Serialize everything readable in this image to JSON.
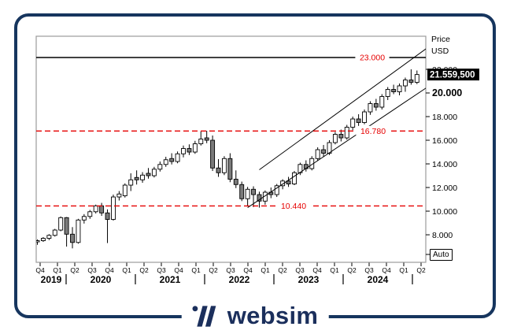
{
  "frame": {
    "border_color": "#16355e"
  },
  "footer": {
    "brand": "websim",
    "logo_color": "#1b2f5c"
  },
  "axis_right": {
    "title_line1": "Price",
    "title_line2": "USD",
    "ticks": [
      {
        "label": "22.000",
        "value": 22
      },
      {
        "label": "20.000",
        "value": 20,
        "emphasis": true
      },
      {
        "label": "18.000",
        "value": 18
      },
      {
        "label": "16.000",
        "value": 16
      },
      {
        "label": "14.000",
        "value": 14
      },
      {
        "label": "12.000",
        "value": 12
      },
      {
        "label": "10.000",
        "value": 10
      },
      {
        "label": "8.000",
        "value": 8
      }
    ],
    "auto_button": "Auto"
  },
  "price_marker": {
    "label": "21.559,500",
    "value": 21.5595
  },
  "axis_bottom": {
    "quarters": [
      "Q4",
      "Q1",
      "Q2",
      "Q3",
      "Q4",
      "Q1",
      "Q2",
      "Q3",
      "Q4",
      "Q1",
      "Q2",
      "Q3",
      "Q4",
      "Q1",
      "Q2",
      "Q3",
      "Q4",
      "Q1",
      "Q2",
      "Q3",
      "Q4",
      "Q1",
      "Q2"
    ],
    "years": [
      {
        "label": "2019"
      },
      {
        "label": "2020"
      },
      {
        "label": "2021"
      },
      {
        "label": "2022"
      },
      {
        "label": "2023"
      },
      {
        "label": "2024"
      }
    ]
  },
  "annotations": {
    "resistance": {
      "label": "23.000",
      "value": 23.0,
      "line": "solid",
      "line_color": "#000000",
      "label_color": "#e60000"
    },
    "upper_dashed": {
      "label": "16.780",
      "value": 16.78,
      "line": "dashed",
      "line_color": "#e60000",
      "label_color": "#e60000"
    },
    "lower_dashed": {
      "label": "10.440",
      "value": 10.44,
      "line": "dashed",
      "line_color": "#e60000",
      "label_color": "#e60000"
    }
  },
  "chart_data": {
    "type": "candlestick",
    "title": "",
    "ylabel": "Price USD",
    "timeframe": "monthly",
    "x_range": [
      "2019-10",
      "2025-03"
    ],
    "ylim": [
      5.67,
      24.8
    ],
    "grid": false,
    "up_color": "#ffffff",
    "down_color": "#7b7b7b",
    "outline_color": "#000000",
    "last_close": 21.5595,
    "trend_channel": {
      "lower": [
        {
          "month": "2022-10",
          "price": 10.3
        },
        {
          "month": "2025-06",
          "price": 20.9
        }
      ],
      "upper": [
        {
          "month": "2022-12",
          "price": 13.5
        },
        {
          "month": "2025-05",
          "price": 23.9
        }
      ]
    },
    "candles": [
      {
        "t": "2019-10",
        "o": 7.4,
        "h": 7.6,
        "l": 7.15,
        "c": 7.5
      },
      {
        "t": "2019-11",
        "o": 7.5,
        "h": 7.8,
        "l": 7.4,
        "c": 7.7
      },
      {
        "t": "2019-12",
        "o": 7.7,
        "h": 8.05,
        "l": 7.55,
        "c": 7.95
      },
      {
        "t": "2020-01",
        "o": 7.95,
        "h": 8.5,
        "l": 7.85,
        "c": 8.4
      },
      {
        "t": "2020-02",
        "o": 8.4,
        "h": 9.55,
        "l": 8.3,
        "c": 9.45
      },
      {
        "t": "2020-03",
        "o": 9.45,
        "h": 9.5,
        "l": 7.0,
        "c": 8.05
      },
      {
        "t": "2020-04",
        "o": 8.05,
        "h": 8.65,
        "l": 6.85,
        "c": 7.35
      },
      {
        "t": "2020-05",
        "o": 7.35,
        "h": 9.35,
        "l": 7.25,
        "c": 9.25
      },
      {
        "t": "2020-06",
        "o": 9.25,
        "h": 9.75,
        "l": 8.95,
        "c": 9.55
      },
      {
        "t": "2020-07",
        "o": 9.55,
        "h": 10.1,
        "l": 9.35,
        "c": 9.95
      },
      {
        "t": "2020-08",
        "o": 9.95,
        "h": 10.55,
        "l": 9.8,
        "c": 10.45
      },
      {
        "t": "2020-09",
        "o": 10.45,
        "h": 10.7,
        "l": 9.6,
        "c": 9.85
      },
      {
        "t": "2020-10",
        "o": 9.85,
        "h": 10.15,
        "l": 7.3,
        "c": 9.3
      },
      {
        "t": "2020-11",
        "o": 9.3,
        "h": 11.4,
        "l": 9.2,
        "c": 11.2
      },
      {
        "t": "2020-12",
        "o": 11.2,
        "h": 11.7,
        "l": 10.9,
        "c": 11.45
      },
      {
        "t": "2021-01",
        "o": 11.3,
        "h": 12.35,
        "l": 11.15,
        "c": 12.2
      },
      {
        "t": "2021-02",
        "o": 12.2,
        "h": 13.2,
        "l": 11.7,
        "c": 12.65
      },
      {
        "t": "2021-03",
        "o": 12.85,
        "h": 13.45,
        "l": 12.25,
        "c": 12.65
      },
      {
        "t": "2021-04",
        "o": 12.65,
        "h": 13.3,
        "l": 12.4,
        "c": 13.05
      },
      {
        "t": "2021-05",
        "o": 13.2,
        "h": 13.65,
        "l": 12.75,
        "c": 13.0
      },
      {
        "t": "2021-06",
        "o": 13.0,
        "h": 13.75,
        "l": 12.85,
        "c": 13.55
      },
      {
        "t": "2021-07",
        "o": 13.55,
        "h": 14.2,
        "l": 13.35,
        "c": 13.95
      },
      {
        "t": "2021-08",
        "o": 13.95,
        "h": 14.6,
        "l": 13.75,
        "c": 14.35
      },
      {
        "t": "2021-09",
        "o": 14.45,
        "h": 14.9,
        "l": 13.95,
        "c": 14.2
      },
      {
        "t": "2021-10",
        "o": 14.2,
        "h": 15.05,
        "l": 14.05,
        "c": 14.85
      },
      {
        "t": "2021-11",
        "o": 14.85,
        "h": 15.55,
        "l": 14.55,
        "c": 15.3
      },
      {
        "t": "2021-12",
        "o": 15.3,
        "h": 15.65,
        "l": 14.75,
        "c": 15.0
      },
      {
        "t": "2022-01",
        "o": 15.0,
        "h": 15.95,
        "l": 14.85,
        "c": 15.7
      },
      {
        "t": "2022-02",
        "o": 15.7,
        "h": 16.75,
        "l": 15.55,
        "c": 16.1
      },
      {
        "t": "2022-03",
        "o": 16.2,
        "h": 16.8,
        "l": 15.75,
        "c": 16.0
      },
      {
        "t": "2022-04",
        "o": 16.0,
        "h": 16.4,
        "l": 13.4,
        "c": 13.65
      },
      {
        "t": "2022-05",
        "o": 13.65,
        "h": 14.4,
        "l": 12.9,
        "c": 13.25
      },
      {
        "t": "2022-06",
        "o": 13.25,
        "h": 14.65,
        "l": 13.05,
        "c": 14.45
      },
      {
        "t": "2022-07",
        "o": 14.45,
        "h": 14.9,
        "l": 12.45,
        "c": 12.7
      },
      {
        "t": "2022-08",
        "o": 12.7,
        "h": 13.45,
        "l": 11.95,
        "c": 12.25
      },
      {
        "t": "2022-09",
        "o": 12.25,
        "h": 12.5,
        "l": 10.85,
        "c": 11.05
      },
      {
        "t": "2022-10",
        "o": 11.05,
        "h": 12.05,
        "l": 10.4,
        "c": 11.85
      },
      {
        "t": "2022-11",
        "o": 11.85,
        "h": 12.1,
        "l": 10.35,
        "c": 11.4
      },
      {
        "t": "2022-12",
        "o": 11.4,
        "h": 11.65,
        "l": 10.3,
        "c": 10.85
      },
      {
        "t": "2023-01",
        "o": 10.85,
        "h": 11.75,
        "l": 10.55,
        "c": 11.6
      },
      {
        "t": "2023-02",
        "o": 11.6,
        "h": 12.0,
        "l": 11.1,
        "c": 11.4
      },
      {
        "t": "2023-03",
        "o": 11.4,
        "h": 12.3,
        "l": 11.2,
        "c": 12.15
      },
      {
        "t": "2023-04",
        "o": 12.15,
        "h": 12.7,
        "l": 11.85,
        "c": 12.55
      },
      {
        "t": "2023-05",
        "o": 12.55,
        "h": 12.9,
        "l": 12.05,
        "c": 12.3
      },
      {
        "t": "2023-06",
        "o": 12.3,
        "h": 13.4,
        "l": 12.2,
        "c": 13.25
      },
      {
        "t": "2023-07",
        "o": 13.25,
        "h": 14.1,
        "l": 13.05,
        "c": 13.95
      },
      {
        "t": "2023-08",
        "o": 13.95,
        "h": 14.3,
        "l": 13.35,
        "c": 13.6
      },
      {
        "t": "2023-09",
        "o": 13.6,
        "h": 14.65,
        "l": 13.45,
        "c": 14.45
      },
      {
        "t": "2023-10",
        "o": 14.45,
        "h": 15.4,
        "l": 14.25,
        "c": 15.2
      },
      {
        "t": "2023-11",
        "o": 15.2,
        "h": 15.6,
        "l": 14.6,
        "c": 14.9
      },
      {
        "t": "2023-12",
        "o": 14.9,
        "h": 16.0,
        "l": 14.75,
        "c": 15.8
      },
      {
        "t": "2024-01",
        "o": 15.8,
        "h": 16.7,
        "l": 15.65,
        "c": 16.5
      },
      {
        "t": "2024-02",
        "o": 16.5,
        "h": 16.9,
        "l": 15.9,
        "c": 16.2
      },
      {
        "t": "2024-03",
        "o": 16.2,
        "h": 17.3,
        "l": 16.05,
        "c": 17.1
      },
      {
        "t": "2024-04",
        "o": 17.1,
        "h": 18.0,
        "l": 16.85,
        "c": 17.8
      },
      {
        "t": "2024-05",
        "o": 17.8,
        "h": 18.2,
        "l": 17.2,
        "c": 17.5
      },
      {
        "t": "2024-06",
        "o": 17.5,
        "h": 18.6,
        "l": 17.35,
        "c": 18.4
      },
      {
        "t": "2024-07",
        "o": 18.4,
        "h": 19.3,
        "l": 18.15,
        "c": 19.1
      },
      {
        "t": "2024-08",
        "o": 19.1,
        "h": 19.5,
        "l": 18.5,
        "c": 18.8
      },
      {
        "t": "2024-09",
        "o": 18.8,
        "h": 19.9,
        "l": 18.6,
        "c": 19.7
      },
      {
        "t": "2024-10",
        "o": 19.7,
        "h": 20.5,
        "l": 19.4,
        "c": 20.3
      },
      {
        "t": "2024-11",
        "o": 20.3,
        "h": 20.7,
        "l": 19.9,
        "c": 20.1
      },
      {
        "t": "2024-12",
        "o": 20.1,
        "h": 20.8,
        "l": 19.8,
        "c": 20.6
      },
      {
        "t": "2025-01",
        "o": 20.6,
        "h": 21.3,
        "l": 20.1,
        "c": 21.1
      },
      {
        "t": "2025-02",
        "o": 21.1,
        "h": 22.0,
        "l": 20.7,
        "c": 20.9
      },
      {
        "t": "2025-03",
        "o": 20.9,
        "h": 21.9,
        "l": 20.75,
        "c": 21.56
      }
    ]
  }
}
